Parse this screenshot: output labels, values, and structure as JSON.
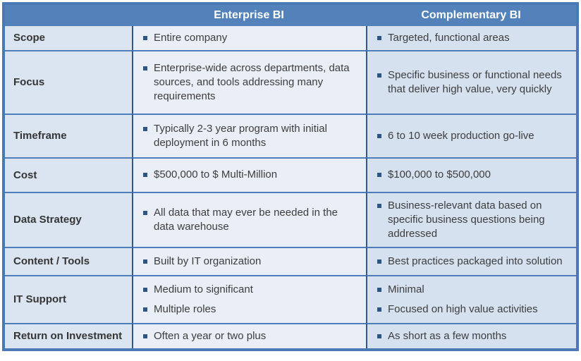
{
  "table": {
    "header": {
      "columns": [
        "",
        "Enterprise BI",
        "Complementary BI"
      ]
    },
    "rows": [
      {
        "label": "Scope",
        "enterprise": [
          "Entire company"
        ],
        "complementary": [
          "Targeted, functional areas"
        ]
      },
      {
        "label": "Focus",
        "enterprise": [
          "Enterprise-wide across departments, data sources, and tools addressing many requirements"
        ],
        "complementary": [
          "Specific business or functional needs that deliver high value, very quickly"
        ]
      },
      {
        "label": "Timeframe",
        "enterprise": [
          "Typically 2-3 year program with initial deployment in 6 months"
        ],
        "complementary": [
          "6 to 10 week production go-live"
        ]
      },
      {
        "label": "Cost",
        "enterprise": [
          "$500,000 to $ Multi-Million"
        ],
        "complementary": [
          "$100,000 to $500,000"
        ]
      },
      {
        "label": "Data Strategy",
        "enterprise": [
          "All data that may ever be needed in the data warehouse"
        ],
        "complementary": [
          "Business-relevant data based on specific business questions being addressed"
        ]
      },
      {
        "label": "Content / Tools",
        "enterprise": [
          "Built by IT organization"
        ],
        "complementary": [
          "Best practices packaged into solution"
        ]
      },
      {
        "label": "IT Support",
        "enterprise": [
          "Medium to significant",
          "Multiple roles"
        ],
        "complementary": [
          "Minimal",
          "Focused on high value activities"
        ]
      },
      {
        "label": "Return on Investment",
        "enterprise": [
          "Often a year or two plus"
        ],
        "complementary": [
          "As short as a few months"
        ]
      }
    ]
  },
  "colors": {
    "header_bg": "#5282b9",
    "header_text": "#ffffff",
    "col1_bg": "#dbe5f1",
    "col2_bg": "#eaeff7",
    "col3_bg": "#d6e1f0",
    "h_border": "#4d7dbb",
    "v_border": "#2f588c",
    "outer_border": "#4a79b6",
    "bullet": "#2d5586",
    "text": "#3d3d3d",
    "label_text": "#353535"
  }
}
